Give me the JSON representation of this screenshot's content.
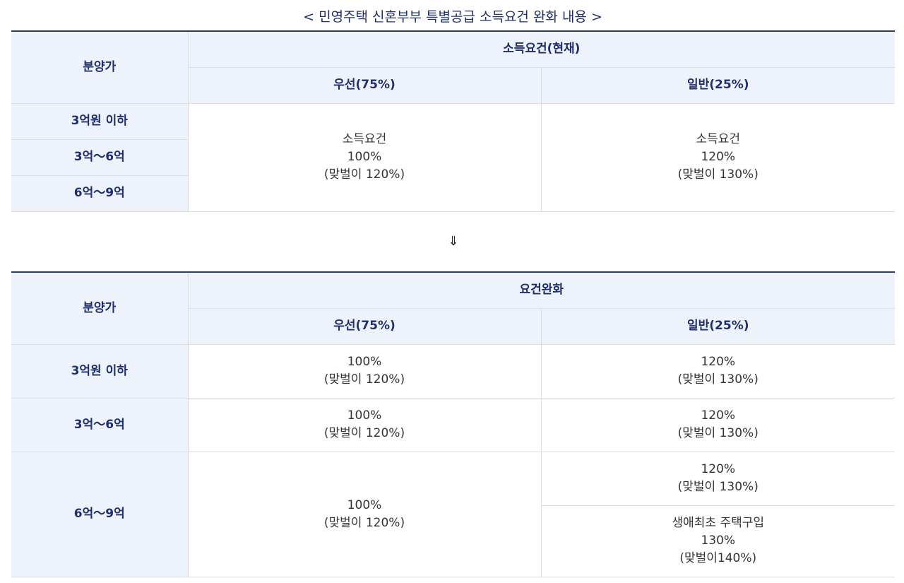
{
  "title": "< 민영주택 신혼부부 특별공급 소득요건 완화 내용 >",
  "arrow": "⇓",
  "current_table": {
    "col_price": "분양가",
    "group_header": "소득요건(현재)",
    "sub_priority": "우선(75%)",
    "sub_general": "일반(25%)",
    "rows": [
      "3억원 이하",
      "3억～6억",
      "6억～9억"
    ],
    "priority_cell": [
      "소득요건",
      "100%",
      "(맞벌이 120%)"
    ],
    "general_cell": [
      "소득요건",
      "120%",
      "(맞벌이 130%)"
    ]
  },
  "relaxed_table": {
    "col_price": "분양가",
    "group_header": "요건완화",
    "sub_priority": "우선(75%)",
    "sub_general": "일반(25%)",
    "rows": [
      {
        "price": "3억원 이하",
        "priority": [
          "100%",
          "(맞벌이 120%)"
        ],
        "general": [
          "120%",
          "(맞벌이 130%)"
        ]
      },
      {
        "price": "3억～6억",
        "priority": [
          "100%",
          "(맞벌이 120%)"
        ],
        "general": [
          "120%",
          "(맞벌이 130%)"
        ]
      },
      {
        "price": "6억～9억",
        "priority": [
          "100%",
          "(맞벌이 120%)"
        ],
        "general": [
          "120%",
          "(맞벌이 130%)"
        ],
        "general_extra": [
          "생애최초 주택구입",
          "130%",
          "(맞벌이140%)"
        ]
      }
    ]
  }
}
